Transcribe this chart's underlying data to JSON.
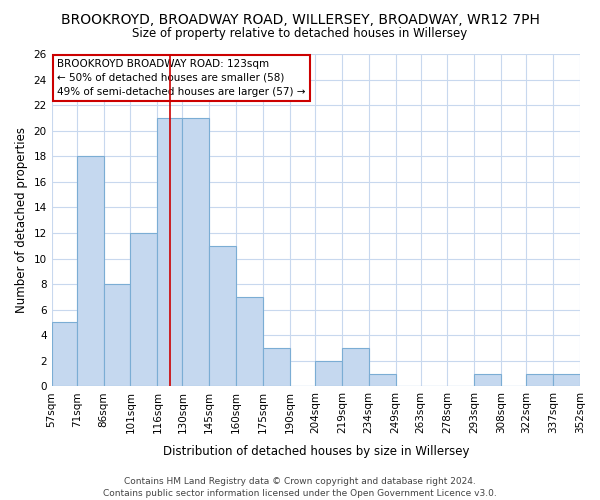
{
  "title": "BROOKROYD, BROADWAY ROAD, WILLERSEY, BROADWAY, WR12 7PH",
  "subtitle": "Size of property relative to detached houses in Willersey",
  "xlabel": "Distribution of detached houses by size in Willersey",
  "ylabel": "Number of detached properties",
  "footer_line1": "Contains HM Land Registry data © Crown copyright and database right 2024.",
  "footer_line2": "Contains public sector information licensed under the Open Government Licence v3.0.",
  "annotation_title": "BROOKROYD BROADWAY ROAD: 123sqm",
  "annotation_line2": "← 50% of detached houses are smaller (58)",
  "annotation_line3": "49% of semi-detached houses are larger (57) →",
  "bin_edges": [
    57,
    71,
    86,
    101,
    116,
    130,
    145,
    160,
    175,
    190,
    204,
    219,
    234,
    249,
    263,
    278,
    293,
    308,
    322,
    337,
    352
  ],
  "bin_labels": [
    "57sqm",
    "71sqm",
    "86sqm",
    "101sqm",
    "116sqm",
    "130sqm",
    "145sqm",
    "160sqm",
    "175sqm",
    "190sqm",
    "204sqm",
    "219sqm",
    "234sqm",
    "249sqm",
    "263sqm",
    "278sqm",
    "293sqm",
    "308sqm",
    "322sqm",
    "337sqm",
    "352sqm"
  ],
  "counts": [
    5,
    18,
    8,
    12,
    21,
    21,
    11,
    7,
    3,
    0,
    2,
    3,
    1,
    0,
    0,
    0,
    1,
    0,
    1,
    1
  ],
  "property_size": 123,
  "bar_color": "#c5d8ef",
  "bar_edge_color": "#7badd4",
  "background_color": "#ffffff",
  "plot_bg_color": "#ffffff",
  "grid_color": "#c8d8ee",
  "highlight_line_color": "#cc0000",
  "ylim": [
    0,
    26
  ],
  "yticks": [
    0,
    2,
    4,
    6,
    8,
    10,
    12,
    14,
    16,
    18,
    20,
    22,
    24,
    26
  ],
  "title_fontsize": 10,
  "subtitle_fontsize": 8.5,
  "axis_label_fontsize": 8.5,
  "tick_fontsize": 7.5,
  "annotation_fontsize": 7.5,
  "footer_fontsize": 6.5
}
